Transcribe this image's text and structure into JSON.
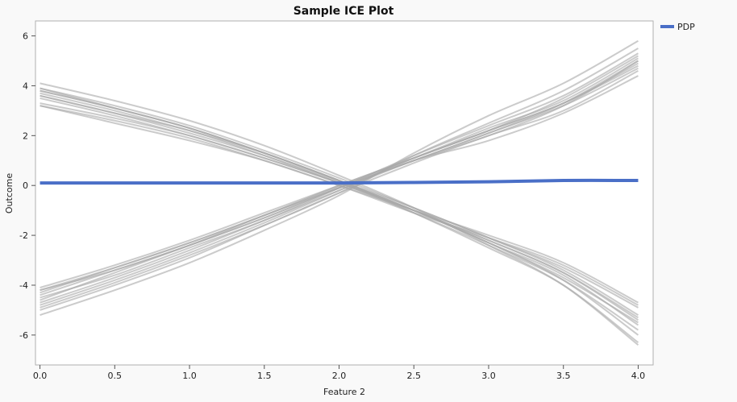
{
  "chart_data": {
    "type": "line",
    "title": "Sample ICE Plot",
    "xlabel": "Feature 2",
    "ylabel": "Outcome",
    "xlim": [
      -0.03,
      4.1
    ],
    "ylim": [
      -7.2,
      6.6
    ],
    "x_ticks": [
      "0.0",
      "0.5",
      "1.0",
      "1.5",
      "2.0",
      "2.5",
      "3.0",
      "3.5",
      "4.0"
    ],
    "y_ticks": [
      "-6",
      "-4",
      "-2",
      "0",
      "2",
      "4",
      "6"
    ],
    "x_tick_values": [
      0,
      0.5,
      1,
      1.5,
      2,
      2.5,
      3,
      3.5,
      4
    ],
    "y_tick_values": [
      -6,
      -4,
      -2,
      0,
      2,
      4,
      6
    ],
    "grid": false,
    "legend": {
      "placement": "outside-right",
      "entries": [
        {
          "label": "PDP",
          "color": "#4a6fc7"
        }
      ]
    },
    "colors": {
      "ice": "#a9a9a9",
      "pdp": "#4a6fc7"
    },
    "x": [
      0,
      0.5,
      1,
      1.5,
      2,
      2.5,
      3,
      3.5,
      4
    ],
    "series": [
      {
        "kind": "ice",
        "values": [
          -4.1,
          -3.2,
          -2.2,
          -1.1,
          0.0,
          1.1,
          2.2,
          3.3,
          4.9
        ]
      },
      {
        "kind": "ice",
        "values": [
          -4.2,
          -3.3,
          -2.3,
          -1.2,
          -0.05,
          1.1,
          2.3,
          3.4,
          5.1
        ]
      },
      {
        "kind": "ice",
        "values": [
          -4.4,
          -3.4,
          -2.4,
          -1.2,
          -0.1,
          1.0,
          2.1,
          3.3,
          5.0
        ]
      },
      {
        "kind": "ice",
        "values": [
          -4.5,
          -3.6,
          -2.5,
          -1.4,
          -0.1,
          1.2,
          2.4,
          3.6,
          5.3
        ]
      },
      {
        "kind": "ice",
        "values": [
          -4.7,
          -3.7,
          -2.6,
          -1.4,
          -0.2,
          1.0,
          2.0,
          3.2,
          5.0
        ]
      },
      {
        "kind": "ice",
        "values": [
          -4.8,
          -3.8,
          -2.7,
          -1.5,
          -0.2,
          1.1,
          2.2,
          3.5,
          5.2
        ]
      },
      {
        "kind": "ice",
        "values": [
          -4.9,
          -3.9,
          -2.8,
          -1.6,
          -0.3,
          0.9,
          2.0,
          3.0,
          4.6
        ]
      },
      {
        "kind": "ice",
        "values": [
          -5.0,
          -4.0,
          -2.9,
          -1.6,
          -0.3,
          1.2,
          2.5,
          3.8,
          5.5
        ]
      },
      {
        "kind": "ice",
        "values": [
          -4.2,
          -3.4,
          -2.4,
          -1.3,
          -0.1,
          1.0,
          1.8,
          2.9,
          4.4
        ]
      },
      {
        "kind": "ice",
        "values": [
          -5.2,
          -4.2,
          -3.1,
          -1.8,
          -0.4,
          1.3,
          2.8,
          4.1,
          5.8
        ]
      },
      {
        "kind": "ice",
        "values": [
          -4.6,
          -3.5,
          -2.4,
          -1.3,
          -0.1,
          1.0,
          2.1,
          3.2,
          4.7
        ]
      },
      {
        "kind": "ice",
        "values": [
          -4.3,
          -3.3,
          -2.3,
          -1.2,
          0.0,
          1.1,
          2.2,
          3.3,
          4.8
        ]
      },
      {
        "kind": "ice",
        "values": [
          3.9,
          3.2,
          2.4,
          1.4,
          0.3,
          -0.9,
          -2.1,
          -3.4,
          -5.2
        ]
      },
      {
        "kind": "ice",
        "values": [
          3.8,
          3.1,
          2.3,
          1.3,
          0.2,
          -1.0,
          -2.3,
          -3.7,
          -5.5
        ]
      },
      {
        "kind": "ice",
        "values": [
          3.6,
          2.9,
          2.2,
          1.2,
          0.1,
          -1.0,
          -2.2,
          -3.5,
          -5.3
        ]
      },
      {
        "kind": "ice",
        "values": [
          3.2,
          2.6,
          1.9,
          1.0,
          0.0,
          -1.0,
          -2.0,
          -3.1,
          -4.7
        ]
      },
      {
        "kind": "ice",
        "values": [
          4.1,
          3.4,
          2.6,
          1.6,
          0.4,
          -0.9,
          -2.4,
          -4.0,
          -6.4
        ]
      },
      {
        "kind": "ice",
        "values": [
          3.5,
          2.8,
          2.0,
          1.1,
          0.1,
          -1.1,
          -2.4,
          -3.8,
          -5.8
        ]
      },
      {
        "kind": "ice",
        "values": [
          3.7,
          3.0,
          2.2,
          1.3,
          0.2,
          -0.9,
          -2.1,
          -3.3,
          -4.9
        ]
      },
      {
        "kind": "ice",
        "values": [
          3.9,
          3.1,
          2.3,
          1.3,
          0.2,
          -1.0,
          -2.3,
          -3.8,
          -6.0
        ]
      },
      {
        "kind": "ice",
        "values": [
          3.3,
          2.7,
          2.0,
          1.1,
          0.1,
          -1.0,
          -2.2,
          -3.5,
          -5.4
        ]
      },
      {
        "kind": "ice",
        "values": [
          3.6,
          2.9,
          2.1,
          1.2,
          0.15,
          -1.0,
          -2.3,
          -3.6,
          -5.6
        ]
      },
      {
        "kind": "ice",
        "values": [
          3.8,
          3.1,
          2.3,
          1.3,
          0.2,
          -1.1,
          -2.5,
          -4.0,
          -6.3
        ]
      },
      {
        "kind": "ice",
        "values": [
          3.2,
          2.5,
          1.8,
          1.0,
          0.0,
          -1.1,
          -2.1,
          -3.2,
          -4.8
        ]
      },
      {
        "kind": "pdp",
        "name": "PDP",
        "values": [
          0.1,
          0.1,
          0.1,
          0.1,
          0.1,
          0.12,
          0.15,
          0.2,
          0.2
        ]
      }
    ]
  }
}
